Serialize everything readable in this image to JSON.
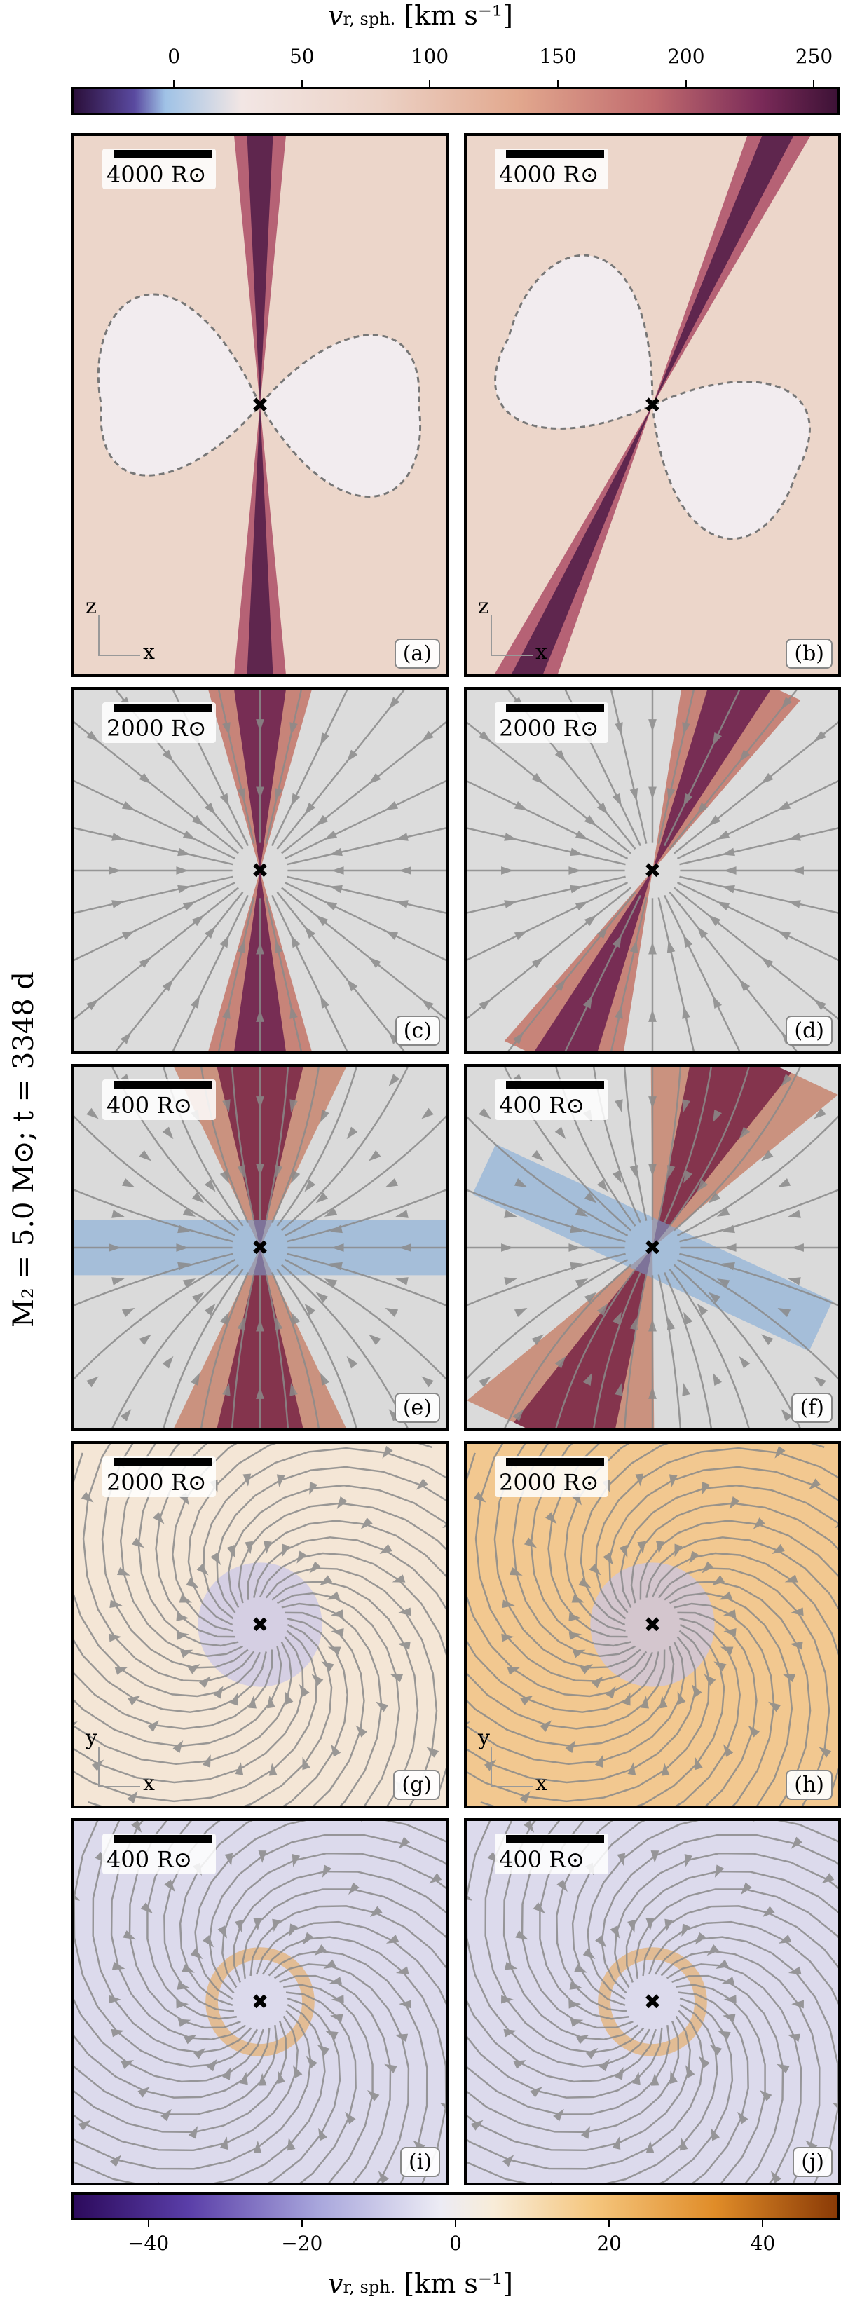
{
  "top_colorbar": {
    "label_main": "v",
    "label_sub": "r, sph.",
    "label_units": "[km s⁻¹]",
    "min": -40,
    "max": 260,
    "ticks": [
      "0",
      "50",
      "100",
      "150",
      "200",
      "250"
    ],
    "tick_values": [
      0,
      50,
      100,
      150,
      200,
      250
    ]
  },
  "bottom_colorbar": {
    "label_main": "v",
    "label_sub": "r, sph.",
    "label_units": "[km s⁻¹]",
    "min": -50,
    "max": 50,
    "ticks": [
      "−40",
      "−20",
      "0",
      "20",
      "40"
    ],
    "tick_values": [
      -40,
      -20,
      0,
      20,
      40
    ]
  },
  "side_label": "M₂ = 5.0 M⊙;   t = 3348 d",
  "panels": [
    {
      "id": "a",
      "label": "(a)",
      "scale": "4000 R⊙",
      "axes": [
        "z",
        "x"
      ]
    },
    {
      "id": "b",
      "label": "(b)",
      "scale": "4000 R⊙",
      "axes": [
        "z",
        "x"
      ]
    },
    {
      "id": "c",
      "label": "(c)",
      "scale": "2000 R⊙",
      "axes": null
    },
    {
      "id": "d",
      "label": "(d)",
      "scale": "2000 R⊙",
      "axes": null
    },
    {
      "id": "e",
      "label": "(e)",
      "scale": "400 R⊙",
      "axes": null
    },
    {
      "id": "f",
      "label": "(f)",
      "scale": "400 R⊙",
      "axes": null
    },
    {
      "id": "g",
      "label": "(g)",
      "scale": "2000 R⊙",
      "axes": [
        "y",
        "x"
      ]
    },
    {
      "id": "h",
      "label": "(h)",
      "scale": "2000 R⊙",
      "axes": [
        "y",
        "x"
      ]
    },
    {
      "id": "i",
      "label": "(i)",
      "scale": "400 R⊙",
      "axes": null
    },
    {
      "id": "j",
      "label": "(j)",
      "scale": "400 R⊙",
      "axes": null
    }
  ],
  "chart_data": {
    "type": "heatmap",
    "description_scale": "Radial spherical velocity maps with streamlines; panels (a)-(f) in x-z plane, (g)-(j) in x-y plane",
    "colormaps": {
      "top": [
        "#2b0f3a",
        "#9fc2e6",
        "#f2e6e4",
        "#e8b49a",
        "#b9536a",
        "#3d1236"
      ],
      "bottom": [
        "#2c0a5c",
        "#7a78c6",
        "#d4d4ee",
        "#f2f0ee",
        "#f5c67e",
        "#e08c28",
        "#8a3a06"
      ]
    }
  }
}
